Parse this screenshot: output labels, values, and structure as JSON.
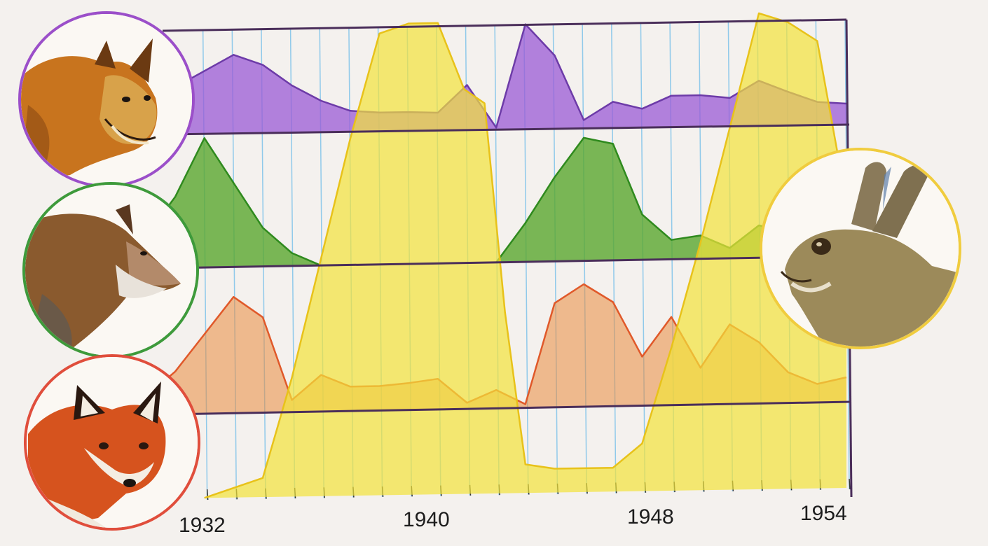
{
  "colors": {
    "background": "#f4f1ee",
    "grid_line": "#7ec3ea",
    "frame": "#4a2e5a",
    "lynx": "#9b59d6",
    "wolf": "#5aa82e",
    "fox": "#e98a3e",
    "hare": "#f2e23a"
  },
  "icons": {
    "lynx": "lynx-portrait",
    "wolf": "wolf-portrait",
    "fox": "fox-portrait",
    "hare": "hare-portrait"
  },
  "chart_data": {
    "type": "area",
    "title": "",
    "xlabel": "",
    "ylabel": "",
    "x_ticks": [
      "1932",
      "1940",
      "1948",
      "1954"
    ],
    "x_range": [
      1931,
      1954
    ],
    "grid": true,
    "legend": "animal portraits at left (lynx, wolf, fox) and right (hare)",
    "series": [
      {
        "key": "lynx",
        "band": 0,
        "x": [
          1931,
          1933,
          1934,
          1935,
          1936,
          1937,
          1938,
          1939,
          1940,
          1941,
          1942,
          1943,
          1944,
          1945,
          1946,
          1947,
          1948,
          1949,
          1950,
          1951,
          1952,
          1953,
          1954
        ],
        "values": [
          0.45,
          0.75,
          0.65,
          0.45,
          0.3,
          0.2,
          0.18,
          0.18,
          0.17,
          0.43,
          0.02,
          1.0,
          0.7,
          0.08,
          0.25,
          0.18,
          0.3,
          0.3,
          0.27,
          0.43,
          0.32,
          0.22,
          0.2
        ]
      },
      {
        "key": "wolf",
        "band": 1,
        "x": [
          1930,
          1931,
          1932,
          1933,
          1934,
          1935,
          1936,
          1937,
          1938,
          1939,
          1940,
          1941,
          1942,
          1943,
          1944,
          1945,
          1946,
          1947,
          1948,
          1949,
          1950,
          1951,
          1952,
          1953,
          1954
        ],
        "values": [
          0.25,
          0.55,
          1.0,
          0.65,
          0.3,
          0.1,
          0.0,
          0.0,
          0.0,
          0.0,
          0.0,
          0.0,
          0.0,
          0.3,
          0.65,
          0.95,
          0.9,
          0.35,
          0.15,
          0.18,
          0.08,
          0.25,
          0.2,
          0.1,
          0.1
        ]
      },
      {
        "key": "fox",
        "band": 2,
        "x": [
          1930,
          1931,
          1932,
          1933,
          1934,
          1935,
          1936,
          1937,
          1938,
          1939,
          1940,
          1941,
          1942,
          1943,
          1944,
          1945,
          1946,
          1947,
          1948,
          1949,
          1950,
          1951,
          1952,
          1953,
          1954
        ],
        "values": [
          0.15,
          0.35,
          0.65,
          0.95,
          0.78,
          0.1,
          0.3,
          0.2,
          0.2,
          0.22,
          0.25,
          0.05,
          0.15,
          0.03,
          0.85,
          1.0,
          0.85,
          0.4,
          0.72,
          0.3,
          0.65,
          0.5,
          0.25,
          0.15,
          0.2
        ]
      },
      {
        "key": "hare",
        "band": -1,
        "x": [
          1932,
          1933,
          1934,
          1935,
          1936,
          1937,
          1938,
          1939,
          1940,
          1940.9,
          1941.6,
          1942.3,
          1943,
          1944,
          1945,
          1946,
          1947,
          1948,
          1949,
          1950,
          1951,
          1952,
          1953,
          1954
        ],
        "values": [
          0.0,
          0.02,
          0.04,
          0.25,
          0.5,
          0.75,
          0.97,
          0.99,
          0.99,
          0.85,
          0.82,
          0.38,
          0.06,
          0.05,
          0.05,
          0.05,
          0.1,
          0.3,
          0.52,
          0.76,
          1.0,
          0.98,
          0.94,
          0.6
        ]
      }
    ]
  }
}
